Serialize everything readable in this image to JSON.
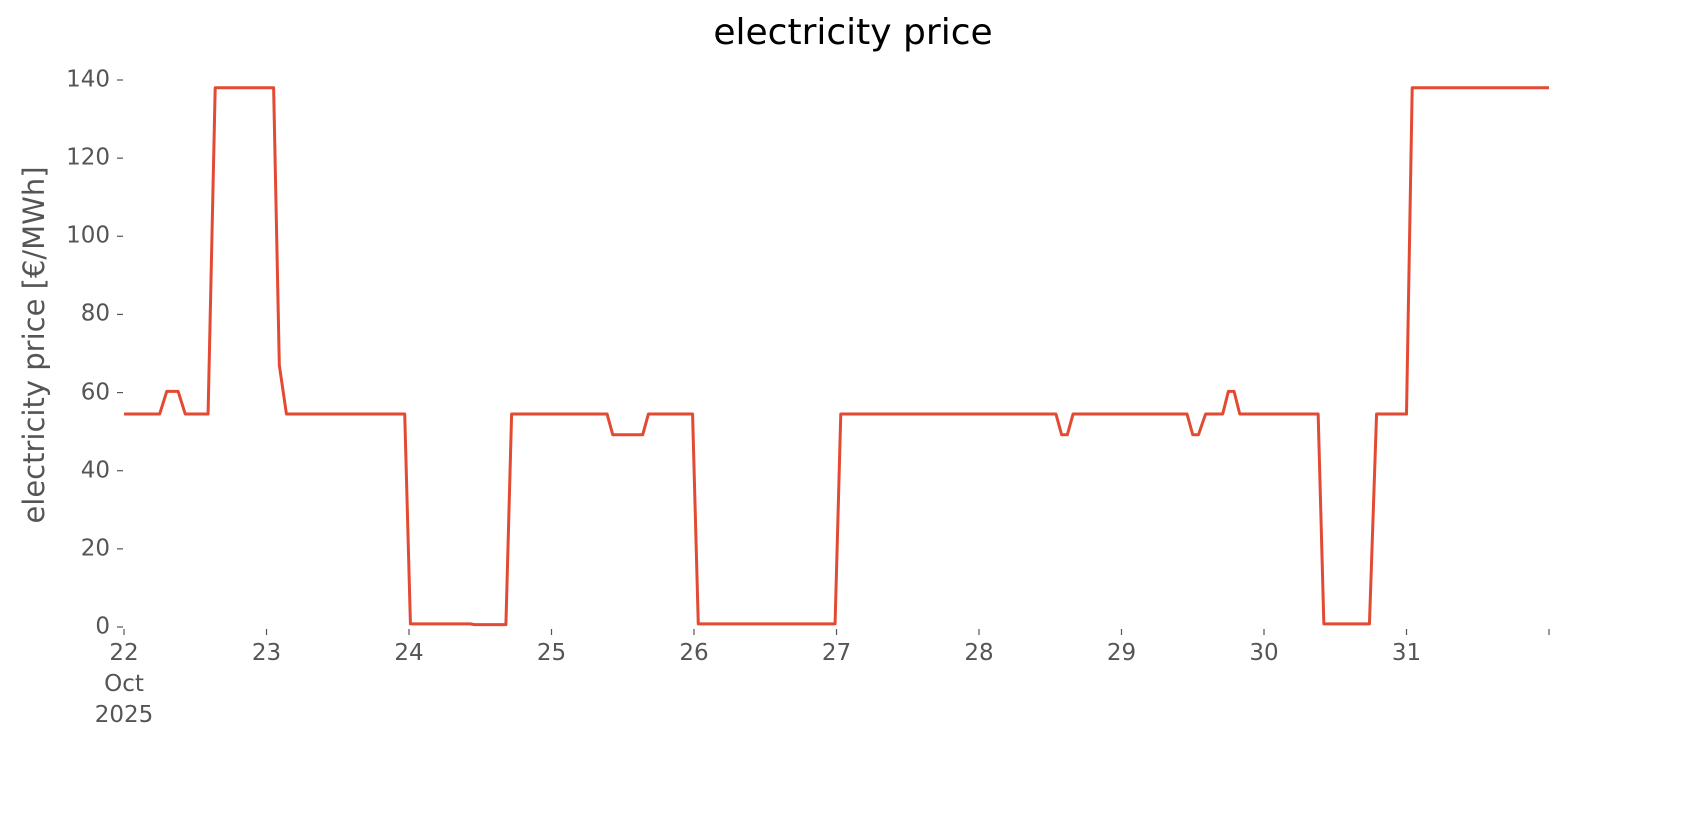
{
  "chart_data": {
    "type": "line",
    "title": "electricity price",
    "ylabel": "electricity price [€/MWh]",
    "x": [
      22.0,
      22.25,
      22.3,
      22.38,
      22.43,
      22.59,
      22.64,
      23.05,
      23.09,
      23.14,
      23.97,
      24.01,
      24.43,
      24.46,
      24.68,
      24.72,
      25.39,
      25.43,
      25.64,
      25.68,
      25.99,
      26.03,
      26.99,
      27.03,
      28.54,
      28.58,
      28.62,
      28.66,
      29.46,
      29.5,
      29.54,
      29.59,
      29.71,
      29.75,
      29.79,
      29.83,
      30.38,
      30.42,
      30.74,
      30.79,
      31.0,
      31.04,
      32.0
    ],
    "values": [
      54.5,
      54.5,
      60.3,
      60.3,
      54.5,
      54.5,
      138,
      138,
      67,
      54.5,
      54.5,
      0.8,
      0.8,
      0.6,
      0.6,
      54.5,
      54.5,
      49.2,
      49.2,
      54.5,
      54.5,
      0.8,
      0.8,
      54.5,
      54.5,
      49.2,
      49.2,
      54.5,
      54.5,
      49.2,
      49.2,
      54.5,
      54.5,
      60.3,
      60.3,
      54.5,
      54.5,
      0.8,
      0.8,
      54.5,
      54.5,
      138,
      138
    ],
    "color": "#e24a33",
    "xlim": [
      22,
      32
    ],
    "xticks": [
      {
        "value": 22,
        "label": "22\nOct\n2025"
      },
      23,
      24,
      25,
      26,
      27,
      28,
      29,
      30,
      31,
      {
        "value": 32,
        "label": null
      }
    ],
    "ylim": [
      0,
      140
    ],
    "yticks": [
      0,
      20,
      40,
      60,
      80,
      100,
      120,
      140
    ],
    "grid": false
  }
}
